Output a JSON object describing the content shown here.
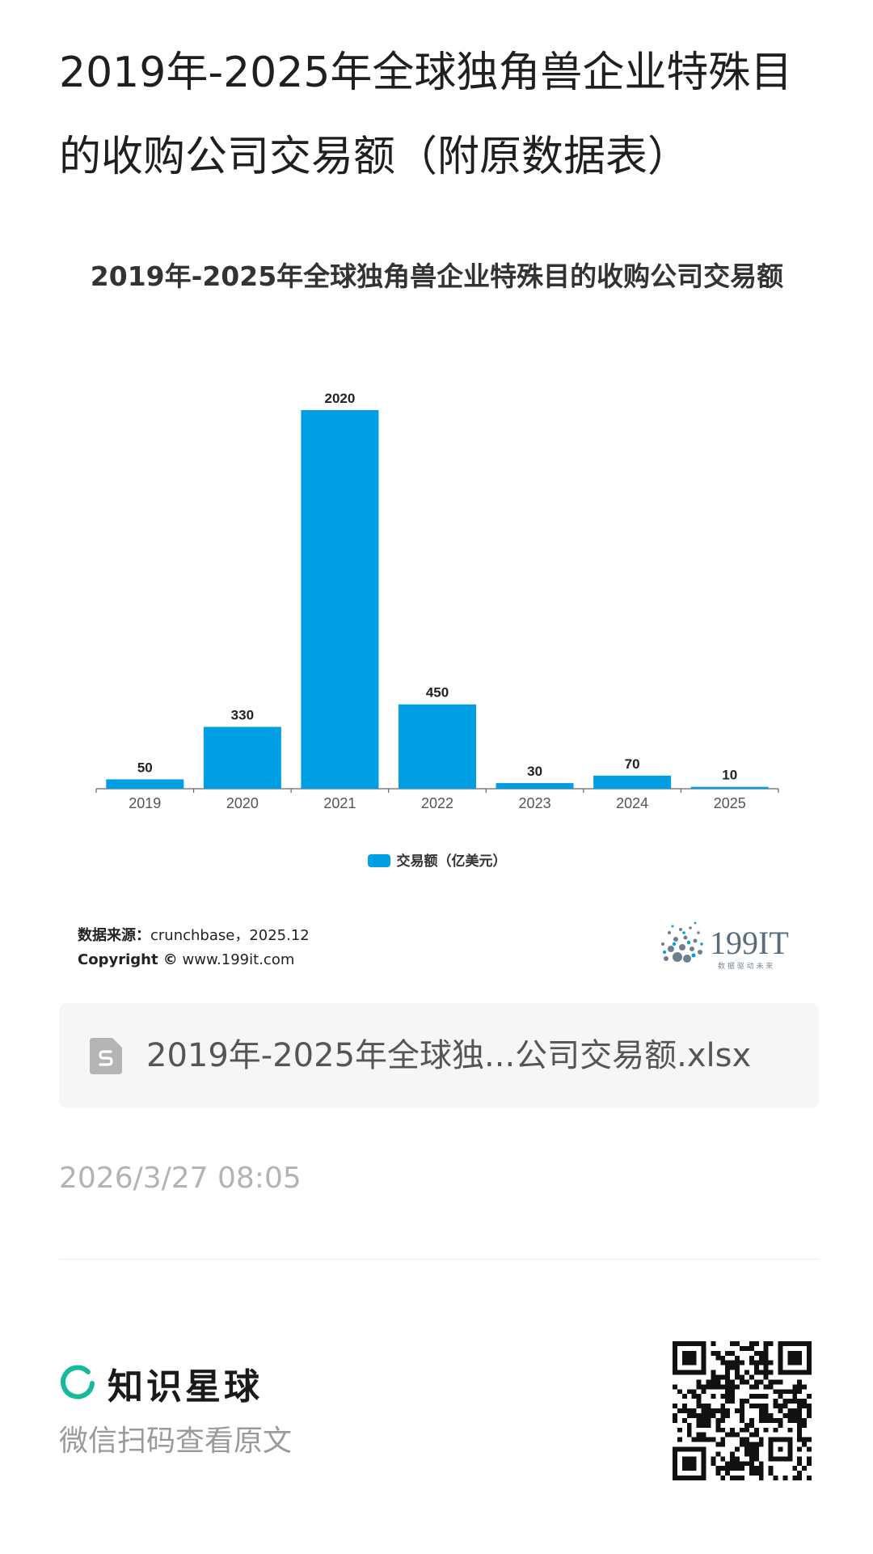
{
  "page": {
    "title": "2019年-2025年全球独角兽企业特殊目的收购公司交易额（附原数据表）"
  },
  "chart_data": {
    "type": "bar",
    "title": "2019年-2025年全球独角兽企业特殊目的收购公司交易额",
    "categories": [
      "2019",
      "2020",
      "2021",
      "2022",
      "2023",
      "2024",
      "2025"
    ],
    "series": [
      {
        "name": "交易额（亿美元）",
        "values": [
          50,
          330,
          2020,
          450,
          30,
          70,
          10
        ],
        "data_labels": [
          "50",
          "330",
          "2020",
          "450",
          "30",
          "70",
          "10"
        ]
      }
    ],
    "color": "#009fe3",
    "xlabel": "",
    "ylabel": "",
    "ylim": [
      0,
      2020
    ],
    "grid": false,
    "legend_position": "bottom",
    "legend_label": "交易额（亿美元）",
    "source_label": "数据来源：",
    "source_value": "crunchbase，2025.12",
    "copyright_label": "Copyright ©",
    "copyright_value": "www.199it.com",
    "brand_logo_text": "199IT",
    "brand_logo_tagline": "数 据 驱 动 未 来"
  },
  "attachment": {
    "icon": "spreadsheet-file-icon",
    "file_name": "2019年-2025年全球独...公司交易额.xlsx"
  },
  "timestamp": "2026/3/27 08:05",
  "footer": {
    "brand_icon": "planet-ring-icon",
    "brand_name": "知识星球",
    "scan_hint": "微信扫码查看原文",
    "brand_color": "#16b998"
  }
}
